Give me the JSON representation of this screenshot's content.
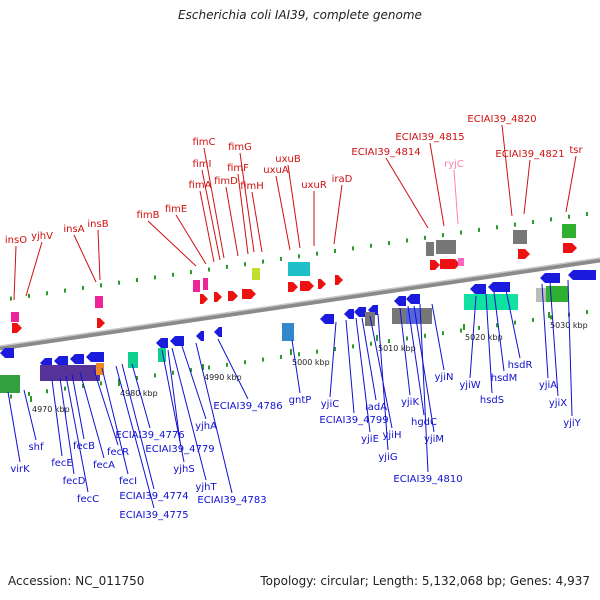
{
  "title": "Escherichia coli IAI39, complete genome",
  "footer": {
    "accession": "Accession: NC_011750",
    "topology": "Topology: circular; Length: 5,132,068 bp; Genes: 4,937"
  },
  "colors": {
    "forward_label": "#d01010",
    "reverse_label": "#1010d0",
    "rna_label": "#ff7fb0"
  },
  "scale_labels": [
    "4970 kbp",
    "4980 kbp",
    "4990 kbp",
    "5000 kbp",
    "5010 kbp",
    "5020 kbp",
    "5030 kbp"
  ],
  "forward_genes": [
    "insO",
    "yjhV",
    "insA",
    "insB",
    "fimB",
    "fimE",
    "fimA",
    "fimI",
    "fimC",
    "fimD",
    "fimF",
    "fimG",
    "fimH",
    "uxuA",
    "uxuB",
    "uxuR",
    "iraD",
    "ECIAI39_4814",
    "ECIAI39_4815",
    "ECIAI39_4820",
    "ECIAI39_4821",
    "tsr"
  ],
  "rna_genes": [
    "ryjC"
  ],
  "reverse_genes": [
    "virK",
    "shf",
    "fecE",
    "fecD",
    "fecC",
    "fecB",
    "fecA",
    "fecR",
    "fecI",
    "ECIAI39_4775",
    "ECIAI39_4774",
    "ECIAI39_4776",
    "yjhS",
    "yjhT",
    "ECIAI39_4779",
    "yjhA",
    "ECIAI39_4783",
    "ECIAI39_4786",
    "gntP",
    "yjiC",
    "ECIAI39_4799",
    "yjiE",
    "iadA",
    "yjiH",
    "yjiG",
    "yjiK",
    "hgdC",
    "yjiM",
    "ECIAI39_4810",
    "yjiN",
    "yjiW",
    "hsdS",
    "hsdM",
    "hsdR",
    "yjiA",
    "yjiX",
    "yjiY"
  ]
}
